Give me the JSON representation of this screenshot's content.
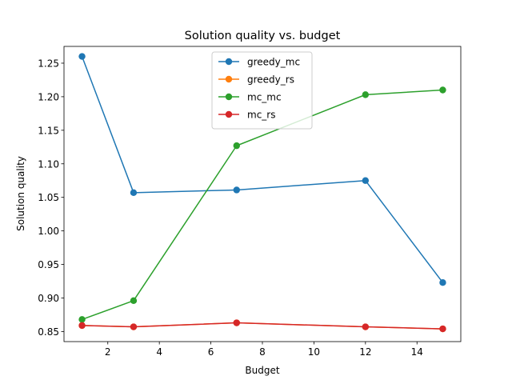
{
  "chart_data": {
    "type": "line",
    "title": "Solution quality vs. budget",
    "xlabel": "Budget",
    "ylabel": "Solution quality",
    "xlim": [
      0.3,
      15.7
    ],
    "ylim": [
      0.835,
      1.275
    ],
    "xticks": [
      2,
      4,
      6,
      8,
      10,
      12,
      14
    ],
    "yticks": [
      0.85,
      0.9,
      0.95,
      1.0,
      1.05,
      1.1,
      1.15,
      1.2,
      1.25
    ],
    "ytick_labels": [
      "0.85",
      "0.90",
      "0.95",
      "1.00",
      "1.05",
      "1.10",
      "1.15",
      "1.20",
      "1.25"
    ],
    "x": [
      1,
      3,
      7,
      12,
      15
    ],
    "series": [
      {
        "name": "greedy_mc",
        "color": "#1f77b4",
        "values": [
          1.26,
          1.057,
          1.061,
          1.075,
          0.923
        ]
      },
      {
        "name": "greedy_rs",
        "color": "#ff7f0e",
        "values": [
          0.859,
          0.857,
          0.863,
          0.857,
          0.854
        ]
      },
      {
        "name": "mc_mc",
        "color": "#2ca02c",
        "values": [
          0.868,
          0.896,
          1.127,
          1.203,
          1.21
        ]
      },
      {
        "name": "mc_rs",
        "color": "#d62728",
        "values": [
          0.859,
          0.857,
          0.863,
          0.857,
          0.854
        ]
      }
    ],
    "legend_position": "upper-center",
    "grid": false
  }
}
